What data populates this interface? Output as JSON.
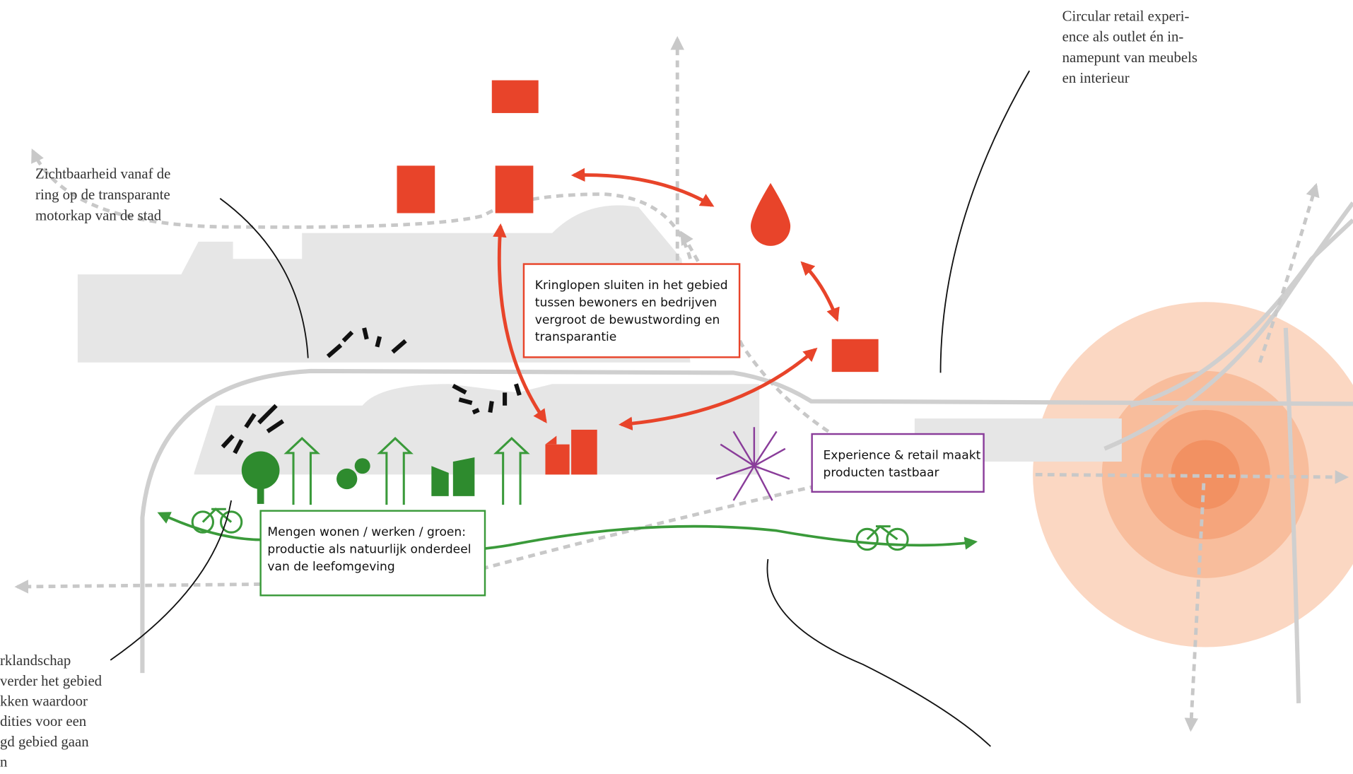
{
  "annotations": [
    {
      "lines": [
        "Circular retail experi-",
        "ence als outlet én in-",
        "namepunt van meubels",
        "en interieur"
      ]
    },
    {
      "lines": [
        "Zichtbaarheid vanaf de",
        "ring op de transparante",
        "motorkap van de stad"
      ]
    },
    {
      "lines": [
        "rklandschap",
        "verder het gebied",
        "kken waardoor",
        "dities voor een",
        "gd gebied gaan",
        "n"
      ]
    }
  ],
  "boxes": [
    {
      "lines": [
        "Kringlopen sluiten in het gebied",
        "tussen bewoners en bedrijven",
        "vergroot de bewustwording en",
        "transparantie"
      ]
    },
    {
      "lines": [
        "Experience & retail maakt",
        "producten tastbaar"
      ]
    },
    {
      "lines": [
        "Mengen wonen / werken / groen:",
        "productie als natuurlijk onderdeel",
        "van de leefomgeving"
      ]
    }
  ]
}
